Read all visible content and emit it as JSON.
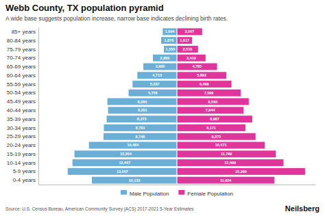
{
  "chart_data": {
    "type": "bar",
    "orientation": "horizontal",
    "title": "Webb County, TX population pyramid",
    "subtitle": "A wide base suggests population increase, narrow base indicates declining birth rates.",
    "annotations": [
      "Source: U.S. Census Bureau, American Community Survey (ACS) 2017-2021 5-Year Estimates",
      "Neilsberg"
    ],
    "categories": [
      "0-4 years",
      "5-9 years",
      "10-14 years",
      "15-19 years",
      "20-24 years",
      "25-29 years",
      "30-34 years",
      "35-39 years",
      "40-44 years",
      "45-49 years",
      "50-54 years",
      "55-59 years",
      "60-64 years",
      "65-69 years",
      "70-74 years",
      "75-79 years",
      "80-84 years",
      "85+ years"
    ],
    "series": [
      {
        "name": "Male Population",
        "color": "#6baed6",
        "values": [
          10133,
          13007,
          12447,
          12204,
          10484,
          8746,
          8701,
          8373,
          8201,
          8280,
          5756,
          5287,
          4713,
          3995,
          2860,
          1555,
          1878,
          1694
        ],
        "value_labels": [
          "10,133",
          "13,007",
          "12,447",
          "12,204",
          "10,484",
          "8,746",
          "8,701",
          "8,373",
          "8,201",
          "8,280",
          "5,756",
          "5,287",
          "4,713",
          "3,995",
          "2,860",
          "1,555",
          "1,878",
          "1,694"
        ]
      },
      {
        "name": "Female Population",
        "color": "#e0359a",
        "values": [
          11624,
          15266,
          12699,
          11789,
          10471,
          9372,
          8171,
          8987,
          7944,
          8565,
          7599,
          6498,
          5892,
          4785,
          3419,
          2518,
          1817,
          3007
        ],
        "value_labels": [
          "11,624",
          "15,266",
          "12,699",
          "11,789",
          "10,471",
          "9,372",
          "8,171",
          "8,987",
          "7,944",
          "8,565",
          "7,599",
          "6,498",
          "5,892",
          "4,785",
          "3,419",
          "2,518",
          "1,817",
          "3,007"
        ]
      }
    ],
    "xlim": [
      -16500,
      16500
    ],
    "data_labels": true,
    "tick_labels": "y",
    "grid": false,
    "legend": "bottom"
  }
}
